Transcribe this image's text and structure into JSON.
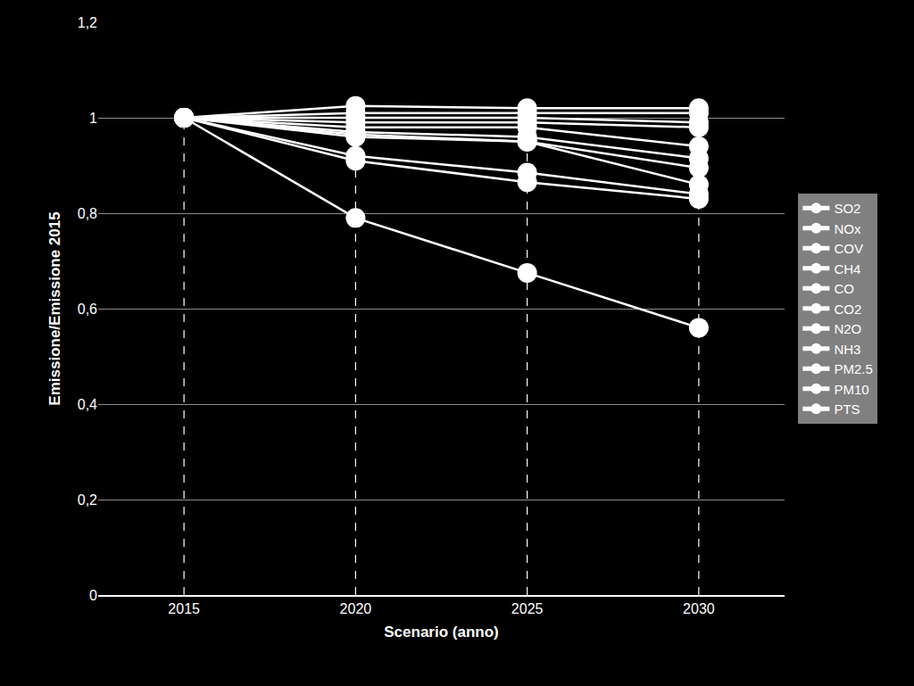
{
  "chart_data": {
    "type": "line",
    "x_label": "Scenario (anno)",
    "y_label": "Emissione/Emissione 2015",
    "categories": [
      "2015",
      "2020",
      "2025",
      "2030"
    ],
    "series": [
      {
        "name": "SO2",
        "color": "#ffffff",
        "values": [
          1,
          0.79,
          0.675,
          0.56
        ]
      },
      {
        "name": "NOx",
        "color": "#ffffff",
        "values": [
          1,
          0.91,
          0.865,
          0.83
        ]
      },
      {
        "name": "COV",
        "color": "#ffffff",
        "values": [
          1,
          0.92,
          0.885,
          0.84
        ]
      },
      {
        "name": "CH4",
        "color": "#ffffff",
        "values": [
          1,
          0.96,
          0.95,
          0.86
        ]
      },
      {
        "name": "CO",
        "color": "#ffffff",
        "values": [
          1,
          0.965,
          0.95,
          0.895
        ]
      },
      {
        "name": "CO2",
        "color": "#ffffff",
        "values": [
          1,
          0.97,
          0.96,
          0.915
        ]
      },
      {
        "name": "N2O",
        "color": "#ffffff",
        "values": [
          1,
          0.98,
          0.98,
          0.94
        ]
      },
      {
        "name": "NH3",
        "color": "#ffffff",
        "values": [
          1,
          0.99,
          0.99,
          0.98
        ]
      },
      {
        "name": "PM2.5",
        "color": "#ffffff",
        "values": [
          1,
          1.0,
          1.0,
          0.99
        ]
      },
      {
        "name": "PM10",
        "color": "#ffffff",
        "values": [
          1,
          1.01,
          1.01,
          1.01
        ]
      },
      {
        "name": "PTS",
        "color": "#ffffff",
        "values": [
          1,
          1.025,
          1.02,
          1.02
        ]
      }
    ],
    "ylim": [
      0,
      1.2
    ],
    "yticks": [
      0,
      {
        "value": 0.2,
        "label": "0,2"
      },
      {
        "value": 0.4,
        "label": "0,4"
      },
      {
        "value": 0.6,
        "label": "0,6"
      },
      {
        "value": 0.8,
        "label": "0,8"
      },
      1,
      {
        "value": 1.2,
        "label": "1,2"
      }
    ],
    "grid": true,
    "legend": "right",
    "marker": "circle",
    "line_style": "solid"
  }
}
